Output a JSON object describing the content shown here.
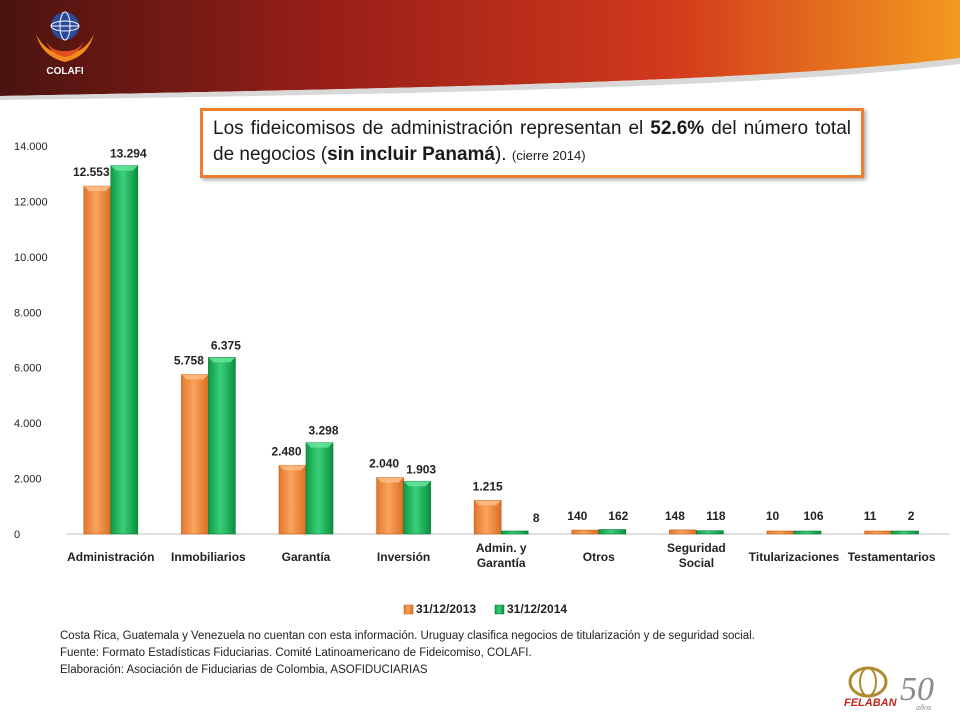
{
  "brand": {
    "logo_text": "COLAFI",
    "footer_logo_text": "FELABAN",
    "footer_logo_number": "50",
    "footer_logo_suffix": "años",
    "header_color_dark": "#5b1a12",
    "header_color_mid": "#c0281e",
    "header_color_light": "#f28a1e"
  },
  "callout": {
    "text_1": "Los fideicomisos de administración representan el ",
    "bold_1": "52.6%",
    "text_2": " del número total de negocios (",
    "bold_2": "sin incluir Panamá",
    "text_3": "). ",
    "small": "(cierre 2014)"
  },
  "chart_data": {
    "type": "bar",
    "title": "",
    "xlabel": "",
    "ylabel": "",
    "ylim": [
      0,
      14000
    ],
    "yticks": [
      0,
      2000,
      4000,
      6000,
      8000,
      10000,
      12000,
      14000
    ],
    "ytick_labels": [
      "0",
      "2.000",
      "4.000",
      "6.000",
      "8.000",
      "10.000",
      "12.000",
      "14.000"
    ],
    "grid": false,
    "legend_position": "bottom",
    "categories": [
      [
        "Administración"
      ],
      [
        "Inmobiliarios"
      ],
      [
        "Garantía"
      ],
      [
        "Inversión"
      ],
      [
        "Admin. y",
        "Garantía"
      ],
      [
        "Otros"
      ],
      [
        "Seguridad",
        "Social"
      ],
      [
        "Titularizaciones"
      ],
      [
        "Testamentarios"
      ]
    ],
    "series": [
      {
        "name": "31/12/2013",
        "color": "#F79646",
        "values": [
          12553,
          5758,
          2480,
          2040,
          1215,
          140,
          148,
          10,
          11
        ],
        "labels": [
          "12.553",
          "5.758",
          "2.480",
          "2.040",
          "1.215",
          "140",
          "148",
          "10",
          "11"
        ]
      },
      {
        "name": "31/12/2014",
        "color": "#00B050",
        "values": [
          13294,
          6375,
          3298,
          1903,
          8,
          162,
          118,
          106,
          2
        ],
        "labels": [
          "13.294",
          "6.375",
          "3.298",
          "1.903",
          "8",
          "162",
          "118",
          "106",
          "2"
        ]
      }
    ]
  },
  "notes": [
    "Costa Rica, Guatemala y Venezuela no cuentan con esta información. Uruguay clasifica negocios de titularización y de seguridad social.",
    "Fuente: Formato Estadísticas Fiduciarias. Comité Latinoamericano de Fideicomiso, COLAFI.",
    "Elaboración: Asociación de Fiduciarias de Colombia, ASOFIDUCIARIAS"
  ]
}
